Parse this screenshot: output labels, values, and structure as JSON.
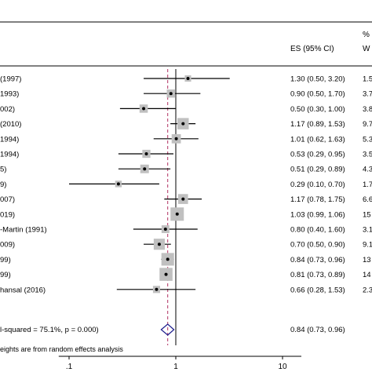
{
  "chart_data": {
    "type": "forest",
    "header": {
      "es_label": "ES (95% CI)",
      "weight_label_top": "%",
      "weight_label_bottom": "W"
    },
    "x_scale": "log",
    "xlim": [
      0.08,
      15
    ],
    "ticks": [
      {
        "value": 0.1,
        "label": ".1"
      },
      {
        "value": 1,
        "label": "1"
      },
      {
        "value": 10,
        "label": "10"
      }
    ],
    "null_line": 1,
    "overall_line": 0.84,
    "colors": {
      "box": "#c0c0c0",
      "diamond": "#1a1a8c",
      "overall_line": "#b03060",
      "line": "#000000"
    },
    "studies": [
      {
        "label": "(1997)",
        "es": 1.3,
        "lo": 0.5,
        "hi": 3.2,
        "ci_text": "1.30 (0.50, 3.20)",
        "weight_text": "1.5"
      },
      {
        "label": "1993)",
        "es": 0.9,
        "lo": 0.5,
        "hi": 1.7,
        "ci_text": "0.90 (0.50, 1.70)",
        "weight_text": "3.7"
      },
      {
        "label": "002)",
        "es": 0.5,
        "lo": 0.3,
        "hi": 1.0,
        "ci_text": "0.50 (0.30, 1.00)",
        "weight_text": "3.8"
      },
      {
        "label": "(2010)",
        "es": 1.17,
        "lo": 0.89,
        "hi": 1.53,
        "ci_text": "1.17 (0.89, 1.53)",
        "weight_text": "9.7"
      },
      {
        "label": "1994)",
        "es": 1.01,
        "lo": 0.62,
        "hi": 1.63,
        "ci_text": "1.01 (0.62, 1.63)",
        "weight_text": "5.3"
      },
      {
        "label": "1994)",
        "es": 0.53,
        "lo": 0.29,
        "hi": 0.95,
        "ci_text": "0.53 (0.29, 0.95)",
        "weight_text": "3.5"
      },
      {
        "label": "5)",
        "es": 0.51,
        "lo": 0.29,
        "hi": 0.89,
        "ci_text": "0.51 (0.29, 0.89)",
        "weight_text": "4.3"
      },
      {
        "label": "9)",
        "es": 0.29,
        "lo": 0.1,
        "hi": 0.7,
        "ci_text": "0.29 (0.10, 0.70)",
        "weight_text": "1.7"
      },
      {
        "label": "007)",
        "es": 1.17,
        "lo": 0.78,
        "hi": 1.75,
        "ci_text": "1.17 (0.78, 1.75)",
        "weight_text": "6.6"
      },
      {
        "label": "019)",
        "es": 1.03,
        "lo": 0.99,
        "hi": 1.06,
        "ci_text": "1.03 (0.99, 1.06)",
        "weight_text": "15"
      },
      {
        "label": "-Martin (1991)",
        "es": 0.8,
        "lo": 0.4,
        "hi": 1.6,
        "ci_text": "0.80 (0.40, 1.60)",
        "weight_text": "3.1"
      },
      {
        "label": "009)",
        "es": 0.7,
        "lo": 0.5,
        "hi": 0.9,
        "ci_text": "0.70 (0.50, 0.90)",
        "weight_text": "9.1"
      },
      {
        "label": "99)",
        "es": 0.84,
        "lo": 0.73,
        "hi": 0.96,
        "ci_text": "0.84 (0.73, 0.96)",
        "weight_text": "13"
      },
      {
        "label": "99)",
        "es": 0.81,
        "lo": 0.73,
        "hi": 0.89,
        "ci_text": "0.81 (0.73, 0.89)",
        "weight_text": "14"
      },
      {
        "label": "hansal (2016)",
        "es": 0.66,
        "lo": 0.28,
        "hi": 1.53,
        "ci_text": "0.66 (0.28, 1.53)",
        "weight_text": "2.3"
      }
    ],
    "overall": {
      "label": "l-squared = 75.1%, p = 0.000)",
      "es": 0.84,
      "lo": 0.73,
      "hi": 0.96,
      "ci_text": "0.84 (0.73, 0.96)"
    },
    "footnote": "eights are from random effects analysis"
  }
}
